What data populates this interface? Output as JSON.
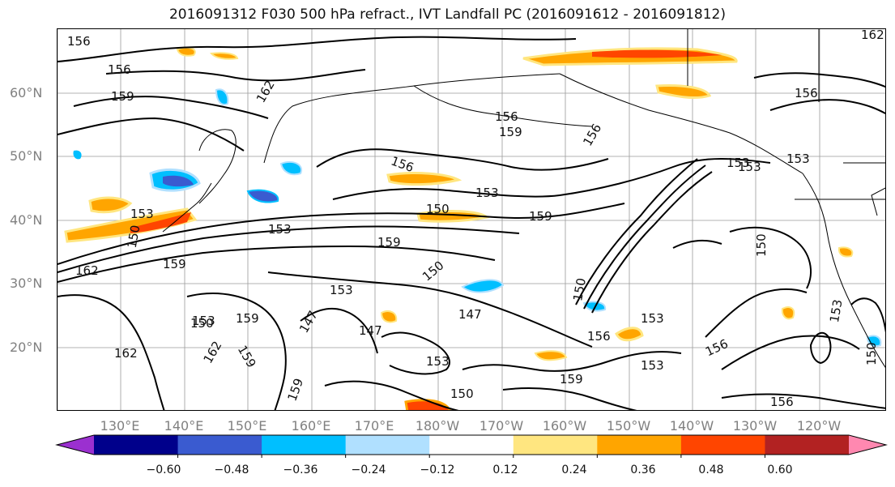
{
  "title": "2016091312 F030 500 hPa refract., IVT Landfall PC (2016091612 - 2016091812)",
  "lat_labels": [
    "60°N",
    "50°N",
    "40°N",
    "30°N",
    "20°N"
  ],
  "lon_labels": [
    "130°E",
    "140°E",
    "150°E",
    "160°E",
    "170°E",
    "180°W",
    "170°W",
    "160°W",
    "150°W",
    "140°W",
    "130°W",
    "120°W"
  ],
  "colorbar": {
    "ticks": [
      "−0.60",
      "−0.48",
      "−0.36",
      "−0.24",
      "−0.12",
      "0.12",
      "0.24",
      "0.36",
      "0.48",
      "0.60"
    ],
    "colors": [
      "#9b30d0",
      "#00008b",
      "#3a5bd0",
      "#00bfff",
      "#b0e0ff",
      "#ffffff",
      "#ffe680",
      "#ffa500",
      "#ff4500",
      "#b22222",
      "#ff88b0"
    ]
  },
  "contour_labels": [
    "156",
    "156",
    "159",
    "162",
    "156",
    "159",
    "156",
    "153",
    "153",
    "150",
    "159",
    "159",
    "153",
    "153",
    "150",
    "162",
    "159",
    "150",
    "153",
    "147",
    "147",
    "153",
    "150",
    "156",
    "156",
    "153",
    "156",
    "159",
    "153",
    "150",
    "153",
    "162",
    "159",
    "159",
    "150",
    "147",
    "150",
    "162",
    "159",
    "153",
    "156",
    "153",
    "150",
    "153",
    "162",
    "156"
  ],
  "colors": {
    "contour": "#000000",
    "pc_positive": "#ffa500",
    "pc_negative": "#00bfff",
    "axis_text": "#808080"
  }
}
